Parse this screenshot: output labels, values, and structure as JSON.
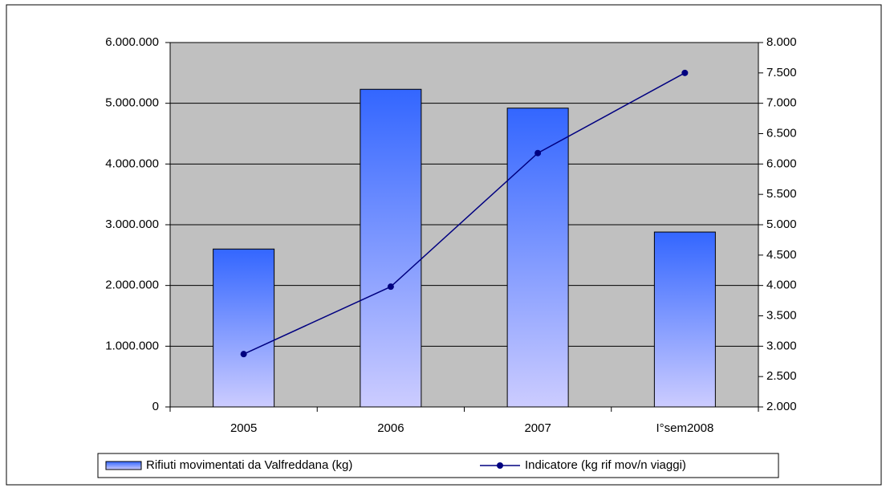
{
  "chart_data": {
    "type": "bar",
    "categories": [
      "2005",
      "2006",
      "2007",
      "I°sem2008"
    ],
    "series": [
      {
        "name": "Rifiuti movimentati da Valfreddana (kg)",
        "type": "bar",
        "color": "#3366ff",
        "values": [
          2600000,
          5230000,
          4920000,
          2880000
        ]
      },
      {
        "name": "Indicatore (kg rif mov/n viaggi)",
        "type": "line",
        "axis": "y2",
        "color": "#000080",
        "values": [
          2870,
          3980,
          6180,
          7500
        ]
      }
    ],
    "ylim": [
      0,
      6000000
    ],
    "yticks": [
      0,
      {
        "value": 1000000,
        "label": "1.000.000"
      },
      {
        "value": 2000000,
        "label": "2.000.000"
      },
      {
        "value": 3000000,
        "label": "3.000.000"
      },
      {
        "value": 4000000,
        "label": "4.000.000"
      },
      {
        "value": 5000000,
        "label": "5.000.000"
      },
      {
        "value": 6000000,
        "label": "6.000.000"
      }
    ],
    "y2lim": [
      2000,
      8000
    ],
    "y2ticks": [
      {
        "value": 2000,
        "label": "2.000"
      },
      {
        "value": 2500,
        "label": "2.500"
      },
      {
        "value": 3000,
        "label": "3.000"
      },
      {
        "value": 3500,
        "label": "3.500"
      },
      {
        "value": 4000,
        "label": "4.000"
      },
      {
        "value": 4500,
        "label": "4.500"
      },
      {
        "value": 5000,
        "label": "5.000"
      },
      {
        "value": 5500,
        "label": "5.500"
      },
      {
        "value": 6000,
        "label": "6.000"
      },
      {
        "value": 6500,
        "label": "6.500"
      },
      {
        "value": 7000,
        "label": "7.000"
      },
      {
        "value": 7500,
        "label": "7.500"
      },
      {
        "value": 8000,
        "label": "8.000"
      }
    ],
    "grid": true,
    "legend": "bottom"
  }
}
